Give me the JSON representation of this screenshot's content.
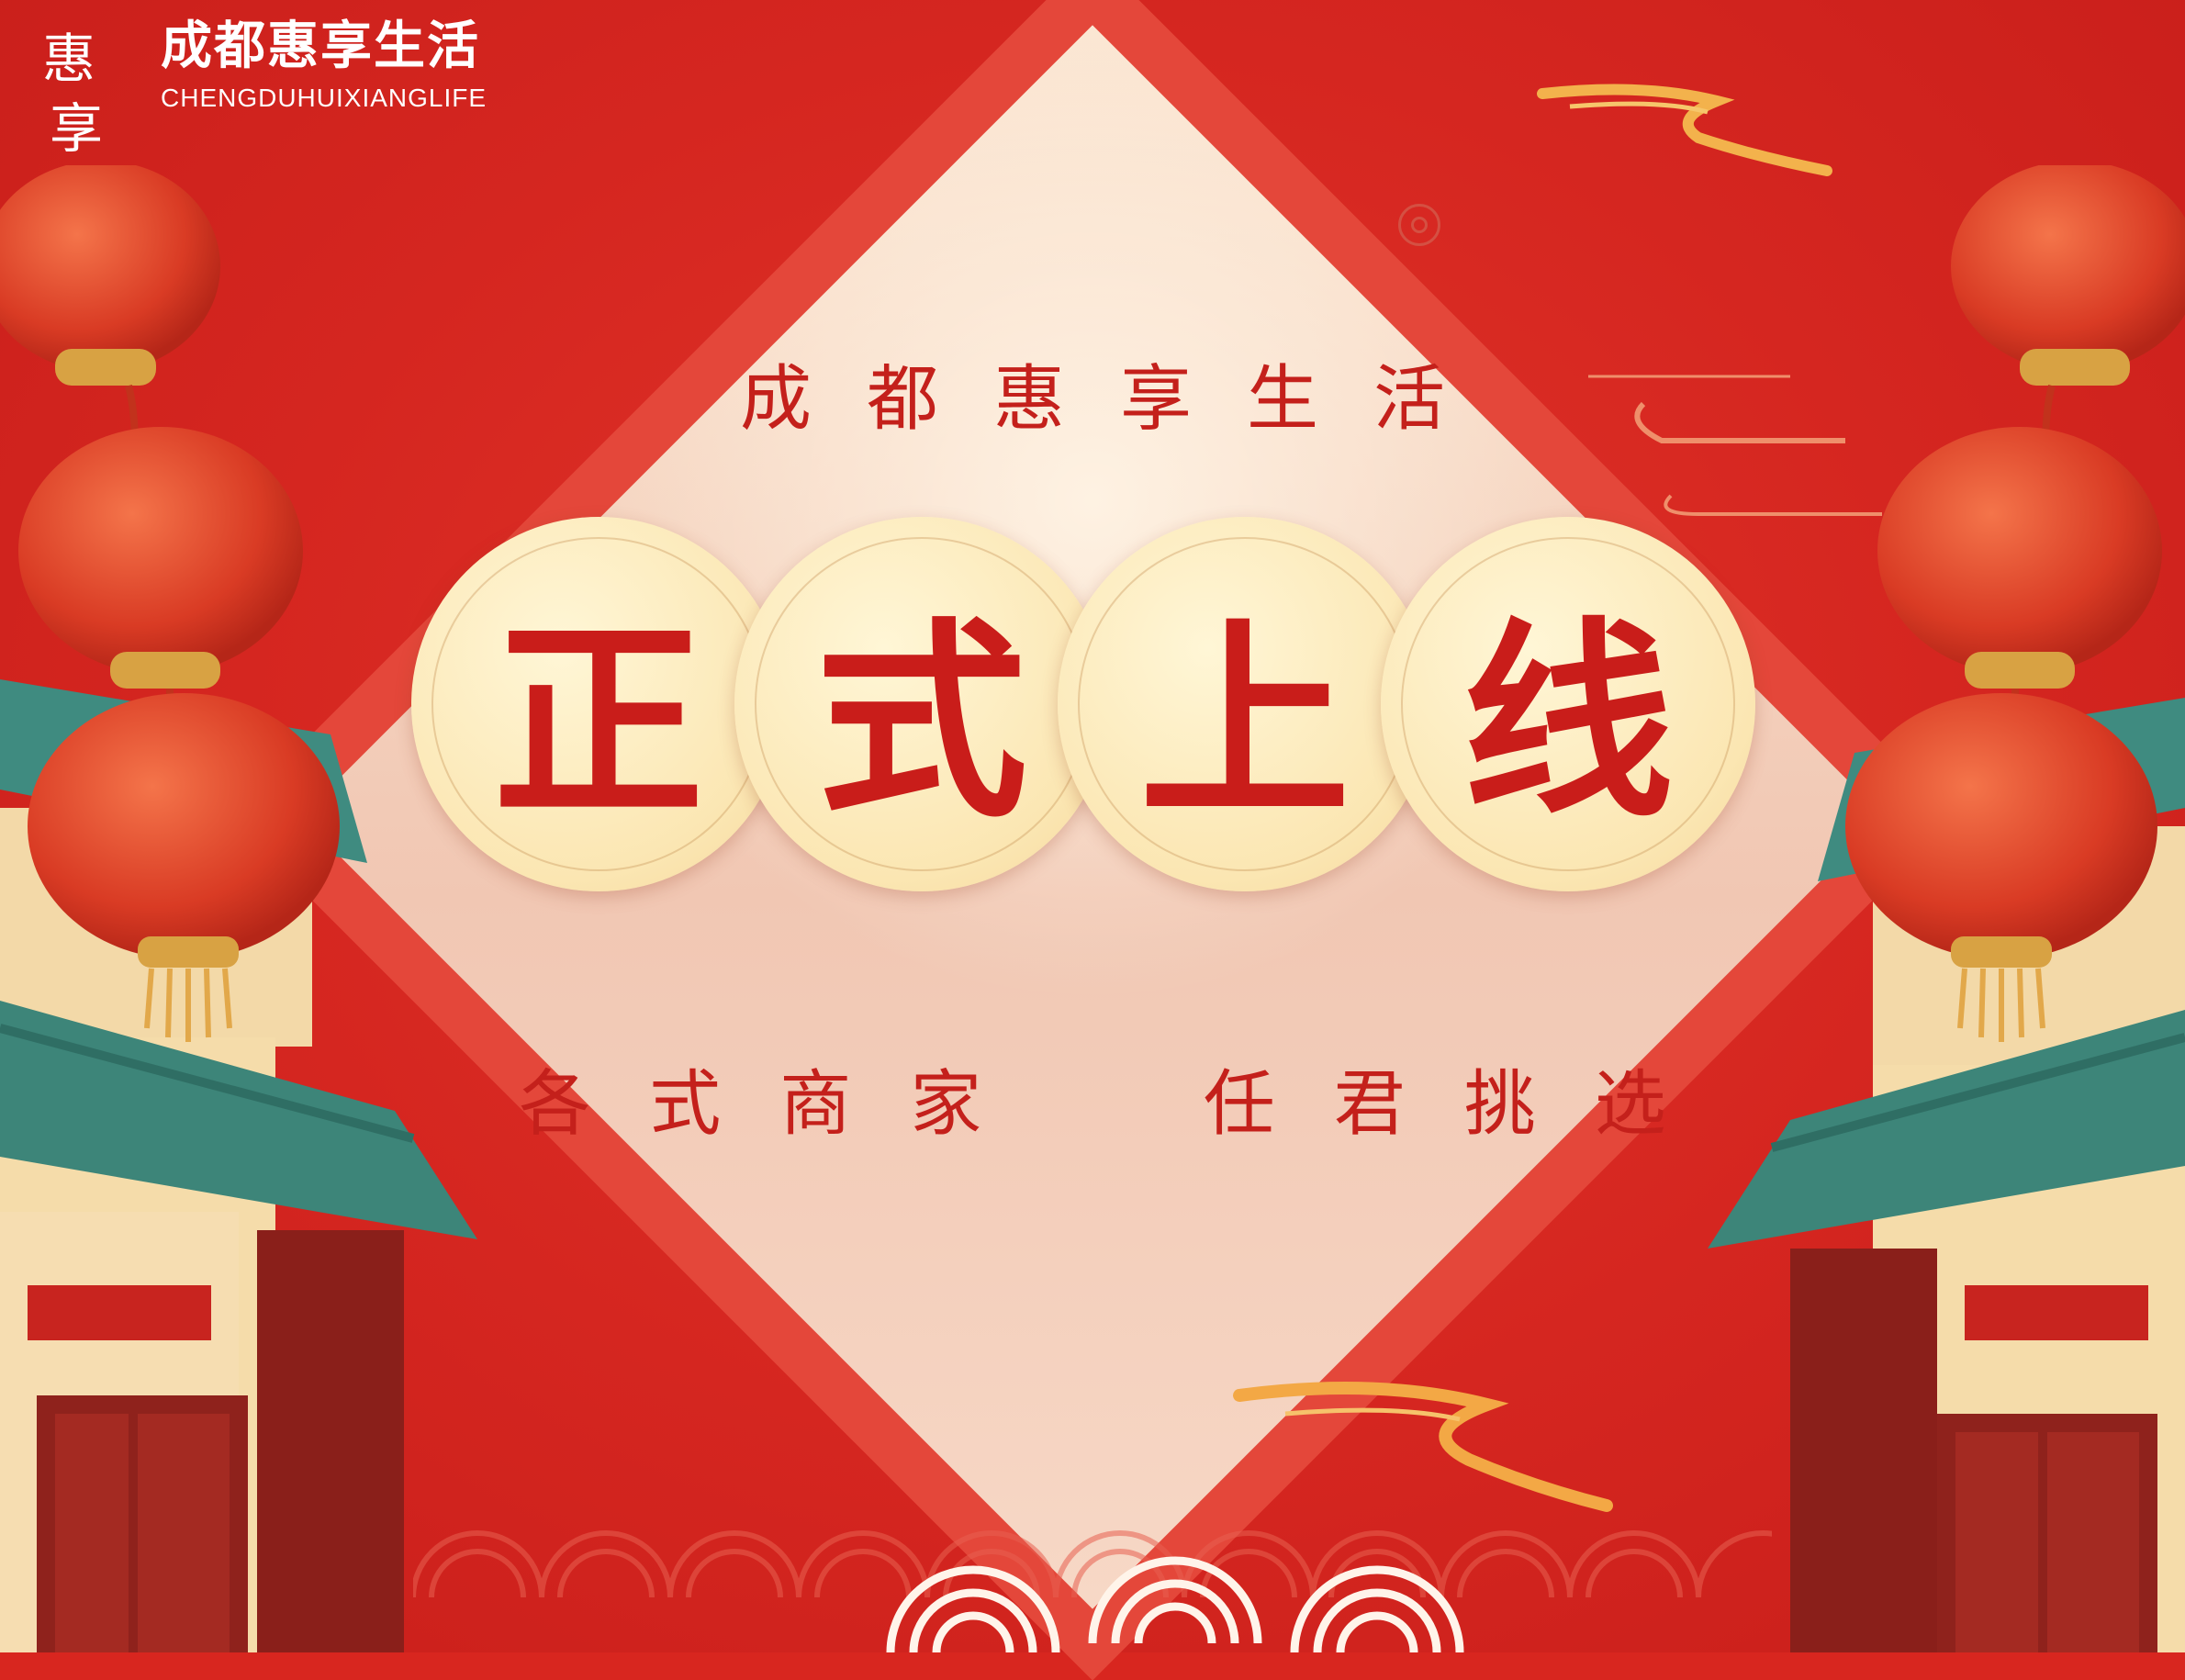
{
  "brand": {
    "logo_glyphs": "惠享",
    "title": "成都惠享生活",
    "subtitle": "CHENGDUHUIXIANGLIFE"
  },
  "headline": "成都惠享生活",
  "coins": [
    "正",
    "式",
    "上",
    "线"
  ],
  "subline": "各式商家  任君挑选",
  "colors": {
    "background_red": "#d8261f",
    "diamond_cream": "#fbe6d2",
    "text_red": "#c4201b",
    "roof_teal": "#3f8b80",
    "lantern_red": "#e0412a"
  }
}
